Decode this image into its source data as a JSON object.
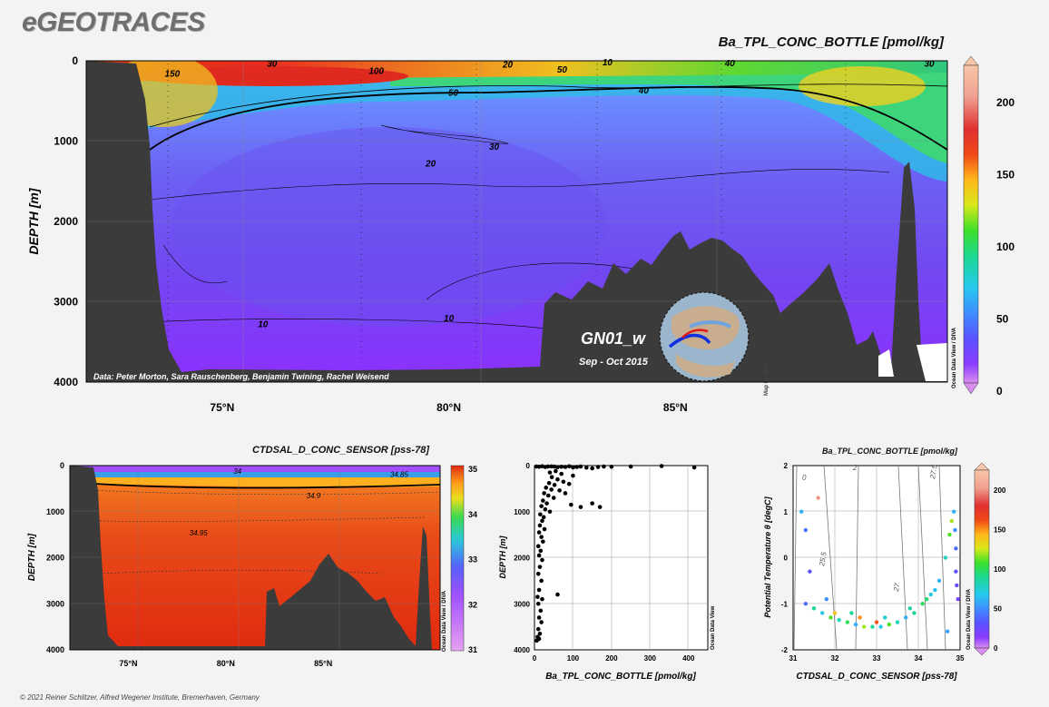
{
  "brand": "eGEOTRACES",
  "footer": "© 2021 Reiner Schlitzer, Alfred Wegener Institute, Bremerhaven, Germany",
  "odv_credit": "Ocean Data View / DIVA",
  "odv_credit_short": "Ocean Data View",
  "colors": {
    "terrain": "#3b3b3b",
    "background": "#f3f3f3"
  },
  "chart_data": [
    {
      "id": "main-section",
      "type": "heatmap",
      "title": "Ba_TPL_CONC_BOTTLE [pmol/kg]",
      "ylabel": "DEPTH [m]",
      "xlim": [
        72,
        91
      ],
      "ylim": [
        0,
        4000
      ],
      "x_ticks": [
        {
          "v": 75,
          "label": "75°N"
        },
        {
          "v": 80,
          "label": "80°N"
        },
        {
          "v": 85,
          "label": "85°N"
        }
      ],
      "y_ticks": [
        0,
        1000,
        2000,
        3000,
        4000
      ],
      "colorbar": {
        "ticks": [
          0,
          50,
          100,
          150,
          200
        ],
        "range": [
          0,
          225
        ]
      },
      "credit": "Data: Peter Morton, Sara Rauschenberg, Benjamin Twining, Rachel Weisend",
      "section_name": "GN01_w",
      "period": "Sep - Oct 2015",
      "contour_labels": [
        {
          "text": "150",
          "x": 73.9,
          "y": 150
        },
        {
          "text": "30",
          "x": 76.1,
          "y": 30
        },
        {
          "text": "100",
          "x": 78.4,
          "y": 120
        },
        {
          "text": "20",
          "x": 81.3,
          "y": 40
        },
        {
          "text": "50",
          "x": 82.5,
          "y": 100
        },
        {
          "text": "10",
          "x": 83.5,
          "y": 10
        },
        {
          "text": "40",
          "x": 86.2,
          "y": 20
        },
        {
          "text": "30",
          "x": 90.6,
          "y": 30
        },
        {
          "text": "50",
          "x": 80.1,
          "y": 390
        },
        {
          "text": "40",
          "x": 84.3,
          "y": 360
        },
        {
          "text": "30",
          "x": 81.0,
          "y": 1060
        },
        {
          "text": "20",
          "x": 79.6,
          "y": 1270
        },
        {
          "text": "10",
          "x": 75.9,
          "y": 3270
        },
        {
          "text": "10",
          "x": 80.0,
          "y": 3200
        }
      ]
    },
    {
      "id": "salinity-section",
      "type": "heatmap",
      "title": "CTDSAL_D_CONC_SENSOR [pss-78]",
      "ylabel": "DEPTH [m]",
      "xlim": [
        72,
        91
      ],
      "ylim": [
        0,
        4000
      ],
      "x_ticks": [
        {
          "v": 75,
          "label": "75°N"
        },
        {
          "v": 80,
          "label": "80°N"
        },
        {
          "v": 85,
          "label": "85°N"
        }
      ],
      "y_ticks": [
        0,
        1000,
        2000,
        3000,
        4000
      ],
      "colorbar": {
        "ticks": [
          31,
          32,
          33,
          34,
          35
        ],
        "range": [
          31,
          35
        ]
      },
      "contour_labels": [
        {
          "text": "34",
          "x": 80.6,
          "y": 120
        },
        {
          "text": "34.85",
          "x": 88.9,
          "y": 190
        },
        {
          "text": "34.9",
          "x": 84.5,
          "y": 650
        },
        {
          "text": "34.95",
          "x": 78.6,
          "y": 1460
        }
      ]
    },
    {
      "id": "profile-scatter",
      "type": "scatter",
      "xlabel": "Ba_TPL_CONC_BOTTLE [pmol/kg]",
      "ylabel": "DEPTH [m]",
      "xlim": [
        0,
        450
      ],
      "ylim": [
        0,
        4000
      ],
      "x_ticks": [
        0,
        100,
        200,
        300,
        400
      ],
      "y_ticks": [
        0,
        1000,
        2000,
        3000,
        4000
      ],
      "points": [
        [
          5,
          20
        ],
        [
          12,
          25
        ],
        [
          20,
          15
        ],
        [
          28,
          30
        ],
        [
          35,
          20
        ],
        [
          44,
          18
        ],
        [
          52,
          22
        ],
        [
          60,
          35
        ],
        [
          70,
          25
        ],
        [
          80,
          30
        ],
        [
          90,
          15
        ],
        [
          100,
          40
        ],
        [
          110,
          30
        ],
        [
          120,
          20
        ],
        [
          135,
          45
        ],
        [
          150,
          60
        ],
        [
          165,
          30
        ],
        [
          180,
          20
        ],
        [
          200,
          25
        ],
        [
          250,
          20
        ],
        [
          330,
          10
        ],
        [
          415,
          40
        ],
        [
          40,
          150
        ],
        [
          55,
          120
        ],
        [
          70,
          180
        ],
        [
          45,
          250
        ],
        [
          60,
          300
        ],
        [
          38,
          380
        ],
        [
          52,
          420
        ],
        [
          30,
          480
        ],
        [
          44,
          520
        ],
        [
          25,
          600
        ],
        [
          36,
          650
        ],
        [
          50,
          700
        ],
        [
          22,
          760
        ],
        [
          32,
          820
        ],
        [
          18,
          880
        ],
        [
          28,
          950
        ],
        [
          40,
          1000
        ],
        [
          15,
          1060
        ],
        [
          24,
          1120
        ],
        [
          20,
          1200
        ],
        [
          14,
          1300
        ],
        [
          26,
          1380
        ],
        [
          12,
          1450
        ],
        [
          18,
          1550
        ],
        [
          22,
          1650
        ],
        [
          10,
          1750
        ],
        [
          16,
          1850
        ],
        [
          12,
          1950
        ],
        [
          20,
          2050
        ],
        [
          14,
          2200
        ],
        [
          10,
          2350
        ],
        [
          18,
          2500
        ],
        [
          12,
          2700
        ],
        [
          8,
          2850
        ],
        [
          20,
          2900
        ],
        [
          60,
          2800
        ],
        [
          10,
          3000
        ],
        [
          16,
          3150
        ],
        [
          12,
          3300
        ],
        [
          18,
          3400
        ],
        [
          10,
          3550
        ],
        [
          14,
          3650
        ],
        [
          8,
          3720
        ],
        [
          12,
          3760
        ],
        [
          6,
          3800
        ],
        [
          95,
          850
        ],
        [
          120,
          900
        ],
        [
          80,
          600
        ],
        [
          150,
          820
        ],
        [
          170,
          900
        ],
        [
          90,
          400
        ],
        [
          75,
          350
        ],
        [
          100,
          220
        ],
        [
          65,
          540
        ]
      ]
    },
    {
      "id": "ts-scatter",
      "type": "scatter",
      "title": "Ba_TPL_CONC_BOTTLE [pmol/kg]",
      "xlabel": "CTDSAL_D_CONC_SENSOR [pss-78]",
      "ylabel": "Potential Temperature θ [degC]",
      "xlim": [
        31,
        35
      ],
      "ylim": [
        -2,
        2
      ],
      "x_ticks": [
        31,
        32,
        33,
        34,
        35
      ],
      "y_ticks": [
        -2,
        -1,
        0,
        1,
        2
      ],
      "colorbar": {
        "ticks": [
          0,
          50,
          100,
          150,
          200
        ],
        "range": [
          0,
          225
        ]
      },
      "isopycnal_labels": [
        "0",
        "2",
        "25.5",
        "27",
        "27.5"
      ],
      "points": [
        [
          31.2,
          1.0,
          60
        ],
        [
          31.3,
          -1.0,
          40
        ],
        [
          31.5,
          -1.1,
          90
        ],
        [
          31.7,
          -1.2,
          70
        ],
        [
          31.9,
          -1.3,
          110
        ],
        [
          32.1,
          -1.35,
          80
        ],
        [
          32.3,
          -1.4,
          100
        ],
        [
          32.5,
          -1.45,
          60
        ],
        [
          32.7,
          -1.5,
          120
        ],
        [
          32.9,
          -1.5,
          90
        ],
        [
          33.1,
          -1.5,
          70
        ],
        [
          33.3,
          -1.45,
          110
        ],
        [
          33.5,
          -1.4,
          80
        ],
        [
          33.7,
          -1.3,
          60
        ],
        [
          33.9,
          -1.2,
          90
        ],
        [
          34.1,
          -1.0,
          100
        ],
        [
          34.3,
          -0.8,
          70
        ],
        [
          34.5,
          -0.5,
          60
        ],
        [
          34.65,
          0.0,
          80
        ],
        [
          34.75,
          0.5,
          110
        ],
        [
          34.8,
          0.8,
          120
        ],
        [
          34.85,
          1.0,
          60
        ],
        [
          34.9,
          0.2,
          40
        ],
        [
          34.9,
          -0.3,
          30
        ],
        [
          34.95,
          -0.9,
          20
        ],
        [
          34.92,
          -0.6,
          25
        ],
        [
          34.88,
          0.6,
          50
        ],
        [
          32.0,
          -1.2,
          140
        ],
        [
          32.6,
          -1.3,
          150
        ],
        [
          33.0,
          -1.4,
          160
        ],
        [
          31.6,
          1.3,
          200
        ],
        [
          31.4,
          -0.3,
          30
        ],
        [
          31.8,
          -0.9,
          50
        ],
        [
          32.4,
          -1.2,
          90
        ],
        [
          33.2,
          -1.3,
          75
        ],
        [
          33.8,
          -1.1,
          85
        ],
        [
          34.2,
          -0.9,
          95
        ],
        [
          34.4,
          -0.7,
          65
        ],
        [
          31.3,
          0.6,
          40
        ],
        [
          34.7,
          -1.6,
          55
        ]
      ]
    }
  ]
}
